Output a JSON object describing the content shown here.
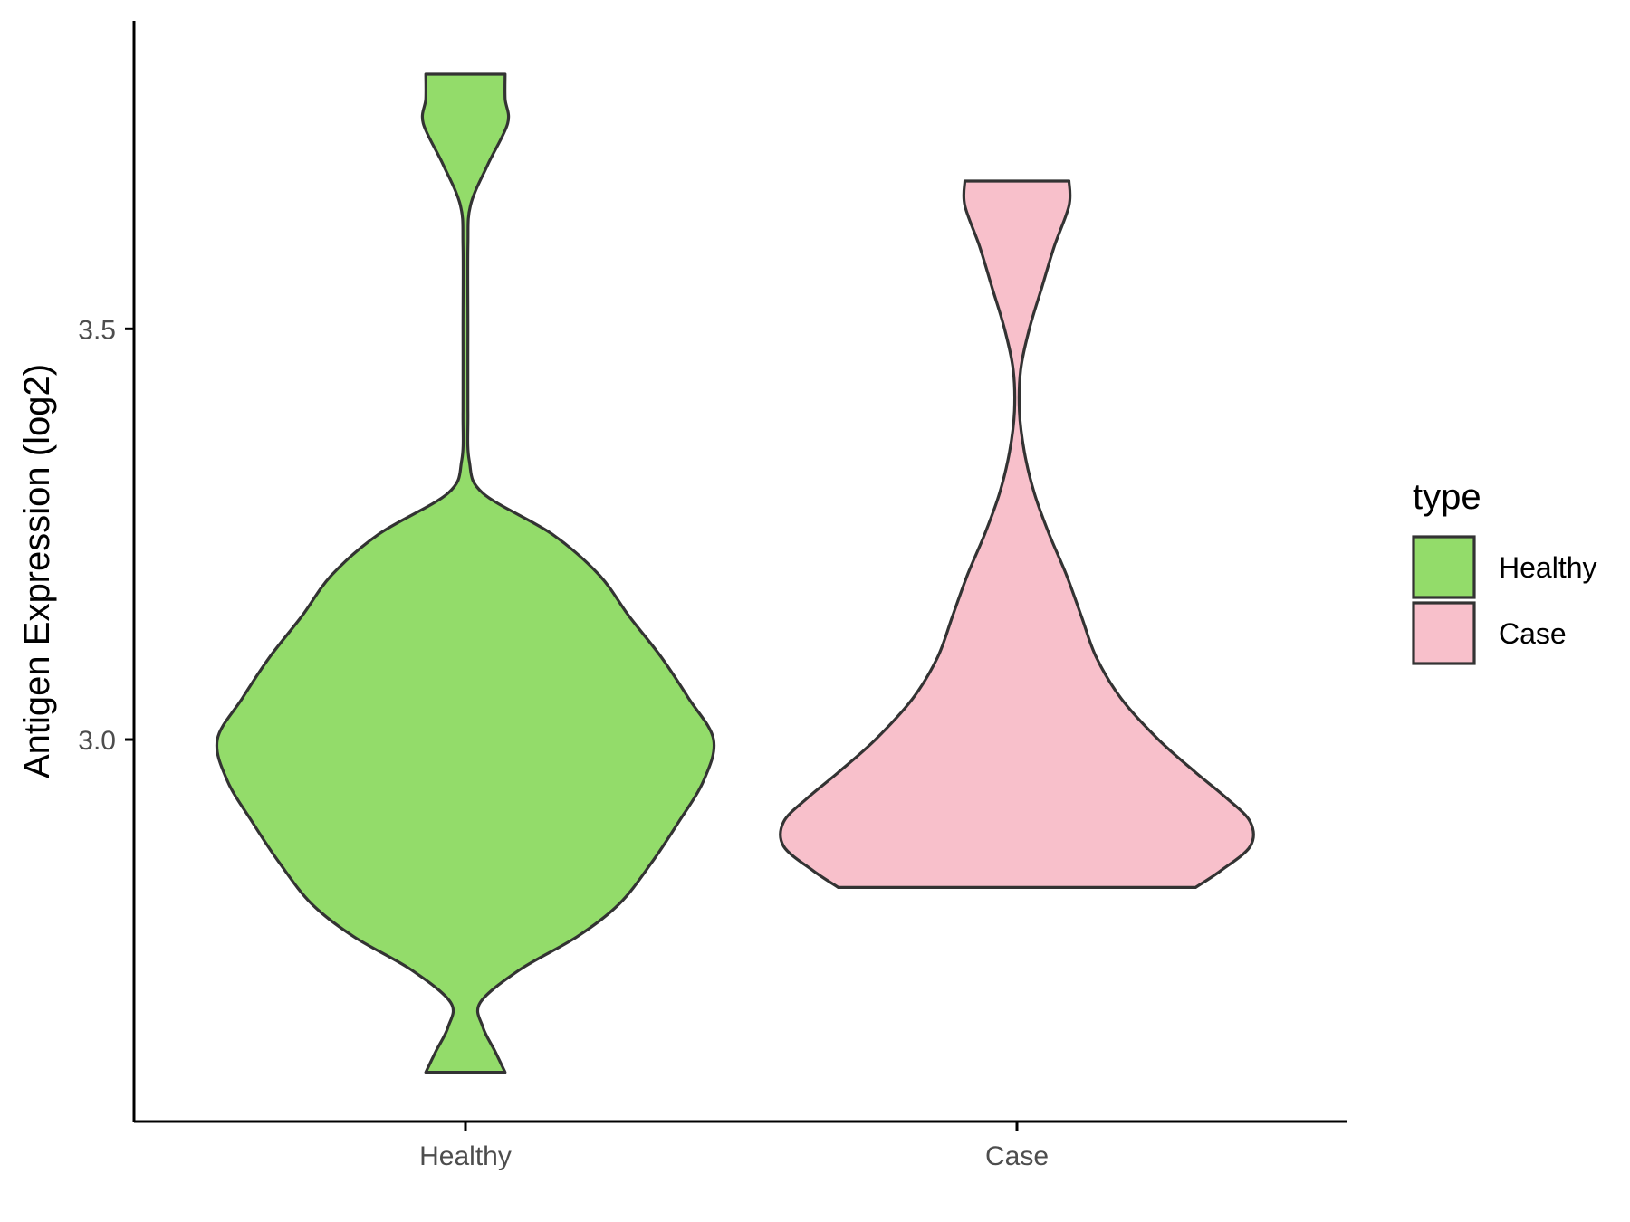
{
  "chart_data": {
    "type": "violin",
    "ylabel": "Antigen Expression (log2)",
    "xlabel": "",
    "categories": [
      "Healthy",
      "Case"
    ],
    "y_ticks": [
      3.0,
      3.5
    ],
    "y_tick_labels": [
      "3.0",
      "3.5"
    ],
    "ylim": [
      2.535,
      3.875
    ],
    "grid": false,
    "legend": {
      "title": "type",
      "position": "right",
      "entries": [
        "Healthy",
        "Case"
      ]
    },
    "series": [
      {
        "category": "Healthy",
        "color": "#93dc6a",
        "min": 2.595,
        "max": 3.81,
        "density_y": [
          2.595,
          2.62,
          2.65,
          2.68,
          2.72,
          2.76,
          2.8,
          2.85,
          2.9,
          2.95,
          3.0,
          3.05,
          3.1,
          3.15,
          3.2,
          3.25,
          3.3,
          3.34,
          3.4,
          3.5,
          3.6,
          3.65,
          3.7,
          3.75,
          3.78,
          3.81
        ],
        "density_w": [
          0.16,
          0.12,
          0.07,
          0.06,
          0.22,
          0.45,
          0.62,
          0.75,
          0.86,
          0.96,
          1.0,
          0.9,
          0.79,
          0.66,
          0.54,
          0.35,
          0.07,
          0.015,
          0.01,
          0.01,
          0.01,
          0.02,
          0.09,
          0.17,
          0.16,
          0.16
        ]
      },
      {
        "category": "Case",
        "color": "#f8c0cb",
        "min": 2.82,
        "max": 3.68,
        "density_y": [
          2.82,
          2.84,
          2.87,
          2.9,
          2.93,
          2.96,
          3.0,
          3.05,
          3.1,
          3.15,
          3.2,
          3.25,
          3.3,
          3.35,
          3.4,
          3.45,
          3.5,
          3.55,
          3.6,
          3.65,
          3.68
        ],
        "density_w": [
          0.72,
          0.82,
          0.94,
          0.94,
          0.84,
          0.72,
          0.57,
          0.42,
          0.32,
          0.26,
          0.2,
          0.13,
          0.07,
          0.03,
          0.01,
          0.015,
          0.05,
          0.1,
          0.15,
          0.21,
          0.21
        ]
      }
    ]
  }
}
